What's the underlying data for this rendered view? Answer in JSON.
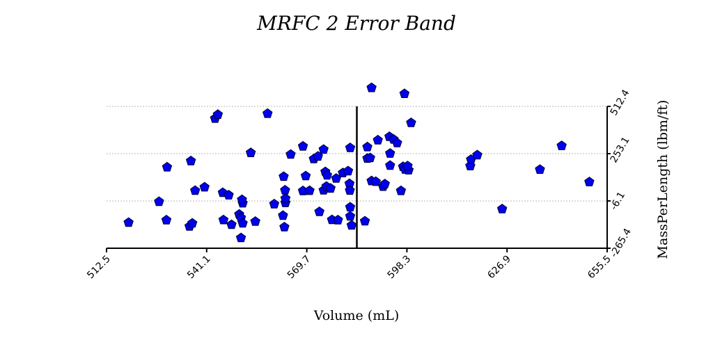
{
  "chart_data": {
    "type": "scatter",
    "title": "MRFC 2 Error Band",
    "xlabel": "Volume (mL)",
    "ylabel": "MassPerLength (lbm/ft)",
    "xlim": [
      512.5,
      655.5
    ],
    "ylim": [
      -265.4,
      512.4
    ],
    "x_ticks": [
      "512.5",
      "541.1",
      "569.7",
      "598.3",
      "626.9",
      "655.5"
    ],
    "y_ticks": [
      "-265.4",
      "-6.1",
      "253.1",
      "512.4"
    ],
    "grid": "horizontal",
    "reference_line_x": 584.0,
    "marker_color": "#0000ee",
    "marker_shape": "pentagon",
    "points": [
      [
        518.8,
        -124.9
      ],
      [
        527.5,
        -10.1
      ],
      [
        529.6,
        -111.1
      ],
      [
        529.8,
        179.1
      ],
      [
        536.2,
        -145.4
      ],
      [
        536.6,
        213.1
      ],
      [
        537.0,
        -128.5
      ],
      [
        537.8,
        50.5
      ],
      [
        540.5,
        69.3
      ],
      [
        543.5,
        446.1
      ],
      [
        544.3,
        467.3
      ],
      [
        545.7,
        39.4
      ],
      [
        545.9,
        -110.5
      ],
      [
        547.4,
        25.5
      ],
      [
        548.2,
        -136.4
      ],
      [
        550.4,
        -79.9
      ],
      [
        550.9,
        -98.5
      ],
      [
        550.9,
        -208.8
      ],
      [
        551.4,
        -18.4
      ],
      [
        551.2,
        0.3
      ],
      [
        551.4,
        -128.4
      ],
      [
        553.7,
        257.7
      ],
      [
        555.0,
        -118.9
      ],
      [
        558.5,
        472.7
      ],
      [
        560.4,
        -23.3
      ],
      [
        562.9,
        -86.3
      ],
      [
        563.1,
        127.4
      ],
      [
        563.3,
        -149.4
      ],
      [
        563.5,
        52.8
      ],
      [
        563.6,
        -16.6
      ],
      [
        563.6,
        7.2
      ],
      [
        565.1,
        248.7
      ],
      [
        568.6,
        293.5
      ],
      [
        568.6,
        49.1
      ],
      [
        569.4,
        130.6
      ],
      [
        570.5,
        50.1
      ],
      [
        571.7,
        224.3
      ],
      [
        572.9,
        238.3
      ],
      [
        573.3,
        -65.6
      ],
      [
        574.5,
        276.2
      ],
      [
        574.5,
        52.7
      ],
      [
        575.0,
        153.4
      ],
      [
        575.3,
        73.3
      ],
      [
        575.5,
        134.7
      ],
      [
        576.5,
        62.9
      ],
      [
        576.9,
        -109.7
      ],
      [
        578.1,
        117.2
      ],
      [
        578.6,
        -111.0
      ],
      [
        580.0,
        147.4
      ],
      [
        581.5,
        157.8
      ],
      [
        581.9,
        88.0
      ],
      [
        582.0,
        51.2
      ],
      [
        582.1,
        285.1
      ],
      [
        582.1,
        -40.3
      ],
      [
        582.1,
        -90.2
      ],
      [
        582.5,
        -140.1
      ],
      [
        586.3,
        -117.0
      ],
      [
        587.0,
        289.6
      ],
      [
        587.0,
        226.8
      ],
      [
        587.8,
        230.0
      ],
      [
        588.2,
        103.6
      ],
      [
        588.2,
        614.2
      ],
      [
        589.4,
        99.6
      ],
      [
        590.0,
        327.3
      ],
      [
        591.5,
        72.5
      ],
      [
        592.0,
        86.7
      ],
      [
        593.3,
        346.3
      ],
      [
        593.5,
        188.2
      ],
      [
        593.5,
        254.3
      ],
      [
        594.5,
        331.4
      ],
      [
        595.5,
        311.6
      ],
      [
        596.6,
        49.5
      ],
      [
        597.2,
        181.3
      ],
      [
        597.6,
        581.5
      ],
      [
        597.8,
        166.5
      ],
      [
        598.8,
        162.5
      ],
      [
        599.5,
        422.5
      ],
      [
        598.5,
        185.3
      ],
      [
        616.4,
        185.6
      ],
      [
        616.6,
        220.8
      ],
      [
        618.4,
        245.5
      ],
      [
        625.5,
        -50.2
      ],
      [
        636.3,
        165.9
      ],
      [
        642.5,
        296.2
      ],
      [
        650.4,
        97.9
      ]
    ]
  }
}
